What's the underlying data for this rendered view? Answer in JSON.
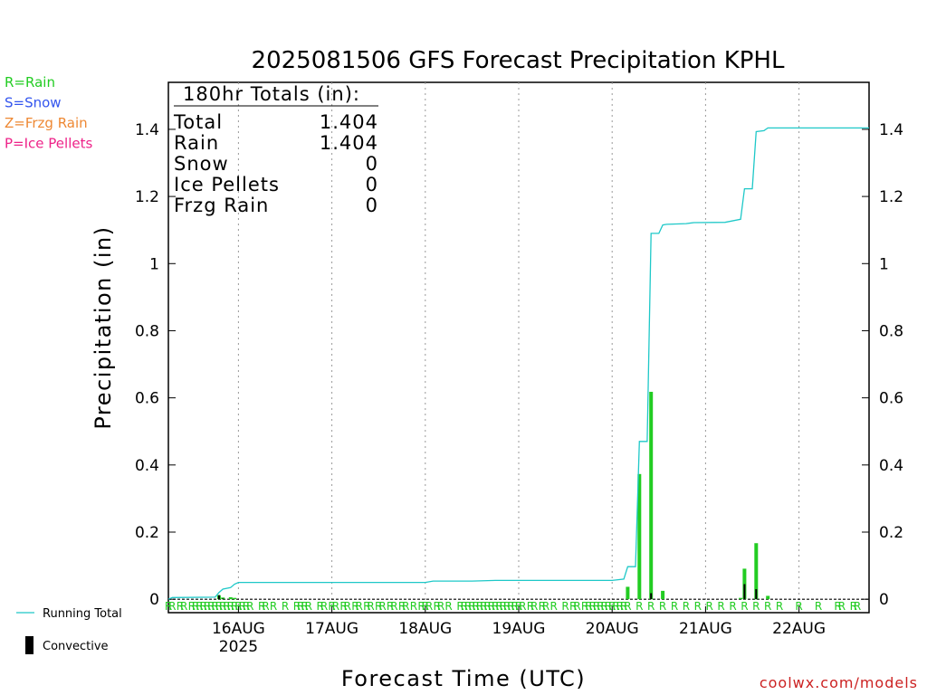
{
  "colors": {
    "rain": "#22cc22",
    "snow": "#3355ee",
    "frzg_rain": "#ee8833",
    "ice_pellets": "#ee2288",
    "running_total": "#1ec8c8",
    "convective": "#000000",
    "credit": "#cc2222"
  },
  "ptype_legend": [
    {
      "label": "R=Rain",
      "color": "#22cc22"
    },
    {
      "label": "S=Snow",
      "color": "#3355ee"
    },
    {
      "label": "Z=Frzg Rain",
      "color": "#ee8833"
    },
    {
      "label": "P=Ice Pellets",
      "color": "#ee2288"
    }
  ],
  "series_legend": {
    "running_total": "Running Total",
    "convective": "Convective"
  },
  "totals_box": {
    "header": "180hr Totals (in):",
    "rows": [
      {
        "label": "Total",
        "value": "1.404"
      },
      {
        "label": "Rain",
        "value": "1.404"
      },
      {
        "label": "Snow",
        "value": "0"
      },
      {
        "label": "Ice Pellets",
        "value": "0"
      },
      {
        "label": "Frzg Rain",
        "value": "0"
      }
    ]
  },
  "credit": "coolwx.com/models",
  "chart_data": {
    "type": "bar",
    "title": "2025081506 GFS Forecast Precipitation KPHL",
    "xlabel": "Forecast Time (UTC)",
    "ylabel": "Precipitation (in)",
    "x_unit": "hours from 2025-08-15 06Z",
    "xlim": [
      0,
      180
    ],
    "ylim": [
      -0.04,
      1.54
    ],
    "yticks": [
      0,
      0.2,
      0.4,
      0.6,
      0.8,
      1,
      1.2,
      1.4
    ],
    "ytick_labels": [
      "0",
      "0.2",
      "0.4",
      "0.6",
      "0.8",
      "1",
      "1.2",
      "1.4"
    ],
    "xticks": [
      {
        "x": 18,
        "label": "16AUG",
        "sublabel": "2025"
      },
      {
        "x": 42,
        "label": "17AUG",
        "sublabel": ""
      },
      {
        "x": 66,
        "label": "18AUG",
        "sublabel": ""
      },
      {
        "x": 90,
        "label": "19AUG",
        "sublabel": ""
      },
      {
        "x": 114,
        "label": "20AUG",
        "sublabel": ""
      },
      {
        "x": 138,
        "label": "21AUG",
        "sublabel": ""
      },
      {
        "x": 162,
        "label": "22AUG",
        "sublabel": ""
      }
    ],
    "grid": "vertical dotted at day boundaries",
    "running_total": {
      "name": "Running Total",
      "points": [
        [
          0,
          0
        ],
        [
          1,
          0.005
        ],
        [
          12,
          0.006
        ],
        [
          13,
          0.02
        ],
        [
          14,
          0.03
        ],
        [
          16,
          0.035
        ],
        [
          17,
          0.045
        ],
        [
          18,
          0.05
        ],
        [
          30,
          0.05
        ],
        [
          48,
          0.05
        ],
        [
          66,
          0.05
        ],
        [
          68,
          0.054
        ],
        [
          78,
          0.054
        ],
        [
          84,
          0.056
        ],
        [
          100,
          0.056
        ],
        [
          114,
          0.056
        ],
        [
          117,
          0.06
        ],
        [
          118,
          0.097
        ],
        [
          120,
          0.097
        ],
        [
          121,
          0.47
        ],
        [
          123,
          0.47
        ],
        [
          124,
          1.09
        ],
        [
          126,
          1.09
        ],
        [
          127,
          1.115
        ],
        [
          128,
          1.117
        ],
        [
          133,
          1.119
        ],
        [
          135,
          1.122
        ],
        [
          143,
          1.123
        ],
        [
          147,
          1.132
        ],
        [
          148,
          1.223
        ],
        [
          150,
          1.223
        ],
        [
          151,
          1.393
        ],
        [
          153,
          1.396
        ],
        [
          154,
          1.404
        ],
        [
          170,
          1.404
        ],
        [
          180,
          1.404
        ]
      ]
    },
    "bars": [
      {
        "x": 13,
        "total": 0.012,
        "convective": 0.012
      },
      {
        "x": 14,
        "total": 0.005,
        "convective": 0.002
      },
      {
        "x": 16,
        "total": 0.006,
        "convective": 0
      },
      {
        "x": 17,
        "total": 0.004,
        "convective": 0
      },
      {
        "x": 118,
        "total": 0.037,
        "convective": 0
      },
      {
        "x": 121,
        "total": 0.373,
        "convective": 0
      },
      {
        "x": 124,
        "total": 0.618,
        "convective": 0.018
      },
      {
        "x": 127,
        "total": 0.025,
        "convective": 0
      },
      {
        "x": 147,
        "total": 0.004,
        "convective": 0
      },
      {
        "x": 148,
        "total": 0.091,
        "convective": 0.045
      },
      {
        "x": 151,
        "total": 0.167,
        "convective": 0.03
      },
      {
        "x": 154,
        "total": 0.01,
        "convective": 0
      }
    ],
    "ptype_marks": {
      "letter": "R",
      "hours": [
        0,
        1,
        3,
        4,
        6,
        7,
        8,
        9,
        10,
        11,
        12,
        13,
        14,
        15,
        16,
        17,
        18,
        19,
        20,
        21,
        24,
        25,
        27,
        30,
        33,
        34,
        35,
        36,
        39,
        40,
        42,
        43,
        45,
        46,
        48,
        49,
        51,
        52,
        54,
        55,
        57,
        58,
        60,
        61,
        63,
        65,
        66,
        67,
        69,
        70,
        72,
        75,
        76,
        77,
        78,
        79,
        80,
        81,
        82,
        83,
        84,
        85,
        86,
        87,
        88,
        89,
        90,
        91,
        93,
        94,
        96,
        97,
        99,
        102,
        104,
        105,
        107,
        108,
        109,
        110,
        111,
        112,
        113,
        114,
        115,
        116,
        117,
        118,
        121,
        124,
        127,
        130,
        133,
        136,
        139,
        142,
        145,
        148,
        151,
        154,
        157,
        162,
        167,
        172,
        173,
        176,
        177
      ]
    }
  }
}
